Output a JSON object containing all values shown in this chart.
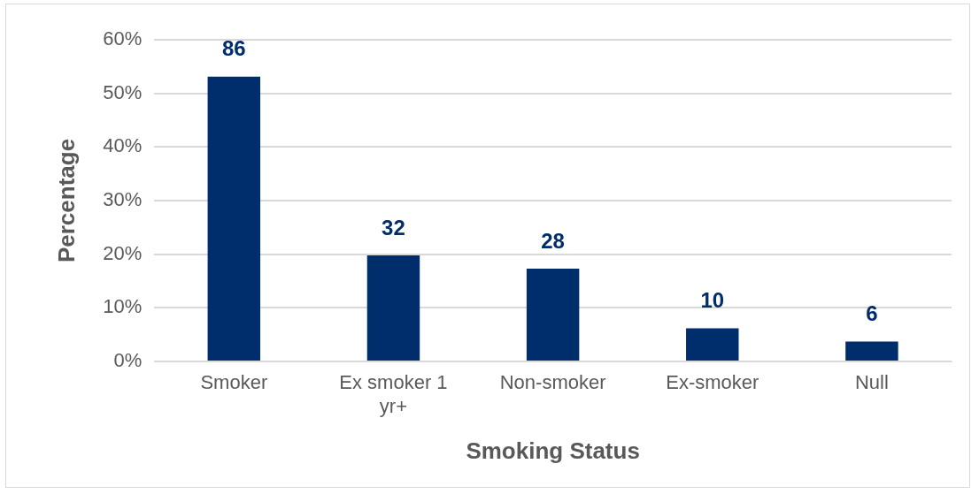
{
  "chart_data": {
    "type": "bar",
    "xlabel": "Smoking Status",
    "ylabel": "Percentage",
    "categories": [
      "Smoker",
      "Ex smoker 1 yr+",
      "Non-smoker",
      "Ex-smoker",
      "Null"
    ],
    "values": [
      53.1,
      19.8,
      17.3,
      6.2,
      3.7
    ],
    "annotations": [
      {
        "text": "86",
        "x": "Smoker",
        "y": 53.1
      },
      {
        "text": "32",
        "x": "Ex smoker 1 yr+",
        "y": 19.8
      },
      {
        "text": "28",
        "x": "Non-smoker",
        "y": 17.3
      },
      {
        "text": "10",
        "x": "Ex-smoker",
        "y": 6.2
      },
      {
        "text": "6",
        "x": "Null",
        "y": 3.7
      }
    ],
    "color": "#002d6b",
    "ylim": [
      0,
      60
    ],
    "yticks": [
      {
        "value": 0,
        "label": "0%"
      },
      {
        "value": 10,
        "label": "10%"
      },
      {
        "value": 20,
        "label": "20%"
      },
      {
        "value": 30,
        "label": "30%"
      },
      {
        "value": 40,
        "label": "40%"
      },
      {
        "value": 50,
        "label": "50%"
      },
      {
        "value": 60,
        "label": "60%"
      }
    ],
    "grid": "y",
    "legend": false
  }
}
